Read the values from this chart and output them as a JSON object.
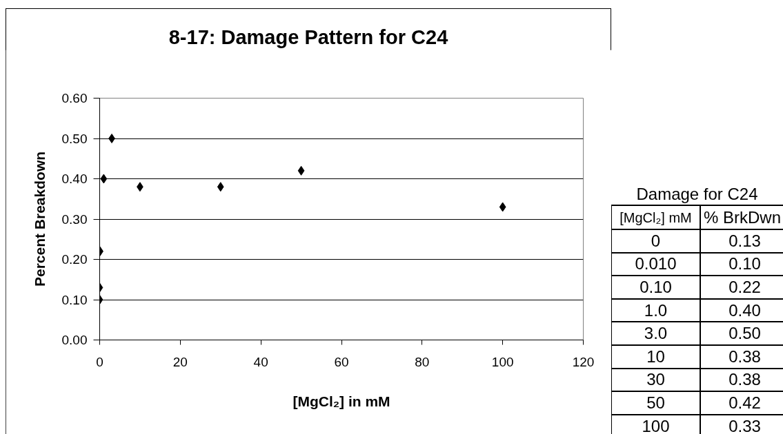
{
  "chart_data": {
    "type": "scatter",
    "title": "8-17: Damage Pattern for C24",
    "xlabel": "[MgCl₂] in mM",
    "ylabel": "Percent Breakdown",
    "x": [
      0,
      0.01,
      0.1,
      1,
      3,
      10,
      30,
      50,
      100
    ],
    "series": [
      {
        "color": "#000000",
        "values": [
          0.13,
          0.1,
          0.22,
          0.4,
          0.5,
          0.38,
          0.38,
          0.42,
          0.33
        ]
      }
    ],
    "xlim": [
      0,
      120
    ],
    "xticks": [
      0,
      20,
      40,
      60,
      80,
      100,
      120
    ],
    "ylim": [
      0,
      0.6
    ],
    "yticks": [
      {
        "value": 0,
        "label": "0.00"
      },
      {
        "value": 0.1,
        "label": "0.10"
      },
      {
        "value": 0.2,
        "label": "0.20"
      },
      {
        "value": 0.3,
        "label": "0.30"
      },
      {
        "value": 0.4,
        "label": "0.40"
      },
      {
        "value": 0.5,
        "label": "0.50"
      },
      {
        "value": 0.6,
        "label": "0.60"
      }
    ],
    "grid": "y",
    "marker": "diamond",
    "annotations": [
      "Damage for C24",
      "[MgCl₂] mM",
      "% BrkDwn",
      "0",
      "0.13",
      "0.010",
      "0.10",
      "0.10",
      "0.22",
      "1.0",
      "0.40",
      "3.0",
      "0.50",
      "10",
      "0.38",
      "30",
      "0.38",
      "50",
      "0.42",
      "100",
      "0.33"
    ]
  }
}
